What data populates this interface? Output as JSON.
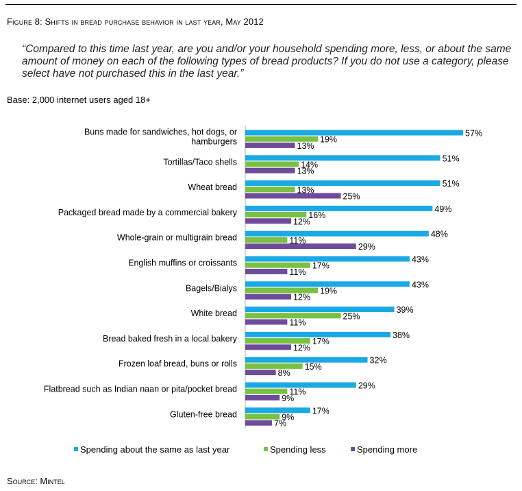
{
  "figure_title": "Figure 8: Shifts in bread purchase behavior in last year, May 2012",
  "question": "“Compared to this time last year, are you and/or your household spending more, less, or about the same amount of money on each of the following types of bread products? If you do not use a category, please select have not purchased this in the last year.”",
  "base": "Base: 2,000 internet users aged 18+",
  "source": "Source: Mintel",
  "colors": {
    "same": "#1AA9E5",
    "less": "#79C142",
    "more": "#6F4C9B"
  },
  "chart_data": {
    "type": "bar",
    "orientation": "horizontal",
    "categories": [
      "Buns made for sandwiches, hot dogs, or|hamburgers",
      "Tortillas/Taco shells",
      "Wheat bread",
      "Packaged bread made by a commercial bakery",
      "Whole-grain or multigrain bread",
      "English muffins or croissants",
      "Bagels/Bialys",
      "White bread",
      "Bread baked fresh in a local bakery",
      "Frozen loaf bread, buns or rolls",
      "Flatbread such as Indian naan or pita/pocket bread",
      "Gluten-free bread"
    ],
    "series": [
      {
        "name": "Spending about the same as last year",
        "values": [
          57,
          51,
          51,
          49,
          48,
          43,
          43,
          39,
          38,
          32,
          29,
          17
        ]
      },
      {
        "name": "Spending less",
        "values": [
          19,
          14,
          13,
          16,
          11,
          17,
          19,
          25,
          17,
          15,
          11,
          9
        ]
      },
      {
        "name": "Spending more",
        "values": [
          13,
          13,
          25,
          12,
          29,
          11,
          12,
          11,
          12,
          8,
          9,
          7
        ]
      }
    ],
    "value_suffix": "%",
    "xlim": [
      0,
      60
    ],
    "grid": false,
    "legend_position": "bottom"
  }
}
